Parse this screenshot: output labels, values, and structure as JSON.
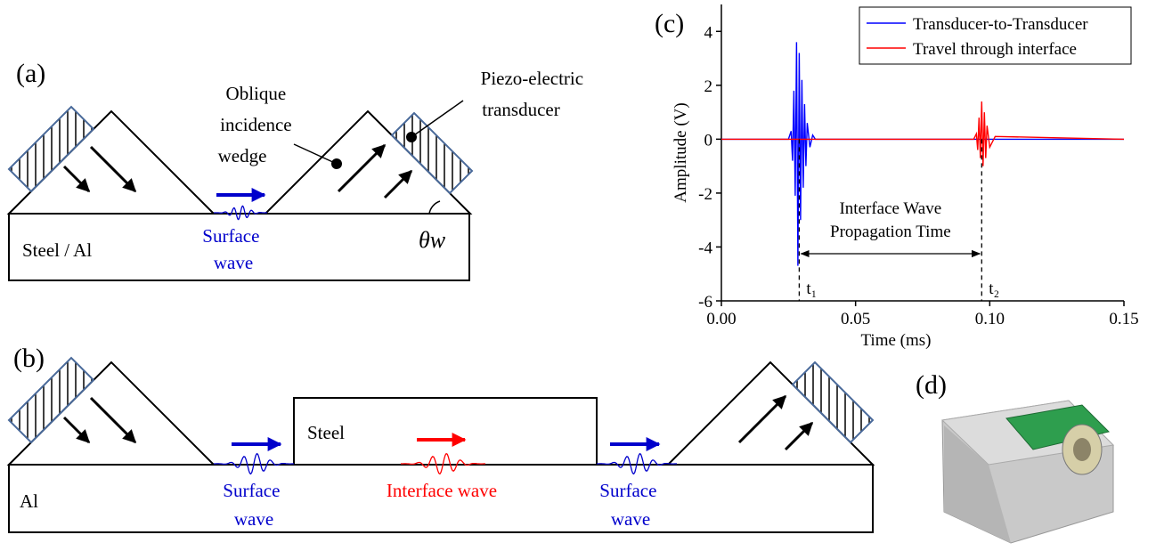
{
  "panel_a": {
    "label": "(a)",
    "wedge_label": [
      "Oblique",
      "incidence",
      "wedge"
    ],
    "transducer_label": [
      "Piezo-electric",
      "transducer"
    ],
    "block_label": "Steel / Al",
    "surface_wave_label": [
      "Surface",
      "wave"
    ],
    "angle_label": "θw"
  },
  "panel_b": {
    "label": "(b)",
    "upper_block_label": "Steel",
    "lower_block_label": "Al",
    "left_wave_label": [
      "Surface",
      "wave"
    ],
    "interface_wave_label": "Interface wave",
    "right_wave_label": [
      "Surface",
      "wave"
    ]
  },
  "panel_d": {
    "label": "(d)"
  },
  "chart_data": {
    "type": "line",
    "panel_label": "(c)",
    "x_label": "Time (ms)",
    "y_label": "Amplitude (V)",
    "xlim": [
      0,
      0.15
    ],
    "ylim": [
      -6,
      5
    ],
    "xticks": [
      {
        "value": 0,
        "label": "0.00"
      },
      0.05,
      {
        "value": 0.1,
        "label": "0.10"
      },
      0.15
    ],
    "yticks": [
      -6,
      -4,
      -2,
      0,
      2,
      4
    ],
    "legend": "upper right",
    "x": [
      0,
      0.02,
      0.025,
      0.026,
      0.0265,
      0.027,
      0.0275,
      0.028,
      0.0285,
      0.029,
      0.0295,
      0.03,
      0.0305,
      0.031,
      0.0315,
      0.032,
      0.033,
      0.034,
      0.035,
      0.04,
      0.09,
      0.094,
      0.095,
      0.0955,
      0.096,
      0.0965,
      0.097,
      0.0975,
      0.098,
      0.0985,
      0.099,
      0.1,
      0.102,
      0.15
    ],
    "series": [
      {
        "name": "Transducer-to-Transducer",
        "color": "#0000ff",
        "values": [
          0,
          0,
          0,
          0.3,
          -0.8,
          1.8,
          -2.1,
          3.6,
          -4.7,
          3.2,
          -3.0,
          2.2,
          -1.8,
          1.3,
          -1.0,
          0.6,
          -0.3,
          0.15,
          0,
          0,
          0,
          0,
          0,
          0,
          0,
          0,
          0,
          0,
          0,
          0,
          0,
          0,
          0,
          0
        ]
      },
      {
        "name": "Travel through interface",
        "color": "#ff0000",
        "values": [
          0,
          0,
          0,
          0,
          0,
          0,
          0,
          0,
          0,
          0,
          0,
          0,
          0,
          0,
          0,
          0,
          0,
          0,
          0,
          0,
          0,
          0,
          0.2,
          -0.4,
          0.8,
          -0.7,
          1.4,
          -1.0,
          1.0,
          -0.7,
          0.5,
          -0.3,
          0.1,
          0
        ]
      }
    ],
    "markers": [
      {
        "x": 0.029,
        "label": "t₁"
      },
      {
        "x": 0.097,
        "label": "t₂"
      }
    ],
    "annotation": [
      "Interface Wave",
      "Propagation Time"
    ]
  }
}
